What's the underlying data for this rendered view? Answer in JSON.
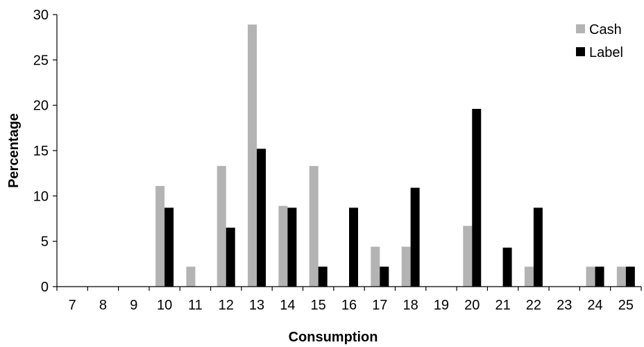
{
  "chart_data": {
    "type": "bar",
    "categories": [
      "7",
      "8",
      "9",
      "10",
      "11",
      "12",
      "13",
      "14",
      "15",
      "16",
      "17",
      "18",
      "19",
      "20",
      "21",
      "22",
      "23",
      "24",
      "25"
    ],
    "series": [
      {
        "name": "Cash",
        "color": "#b3b3b3",
        "values": [
          0,
          0,
          0,
          11.1,
          2.2,
          13.3,
          28.9,
          8.9,
          13.3,
          0,
          4.4,
          4.4,
          0,
          6.7,
          0,
          2.2,
          0,
          2.2,
          2.2
        ]
      },
      {
        "name": "Label",
        "color": "#000000",
        "values": [
          0,
          0,
          0,
          8.7,
          0,
          6.5,
          15.2,
          8.7,
          2.2,
          8.7,
          2.2,
          10.9,
          0,
          19.6,
          4.3,
          8.7,
          0,
          2.2,
          2.2
        ]
      }
    ],
    "xlabel": "Consumption",
    "ylabel": "Percentage",
    "ylim": [
      0,
      30
    ],
    "yticks": [
      "0",
      "5",
      "10",
      "15",
      "20",
      "25",
      "30"
    ],
    "grid": false,
    "legend": "top-right"
  }
}
